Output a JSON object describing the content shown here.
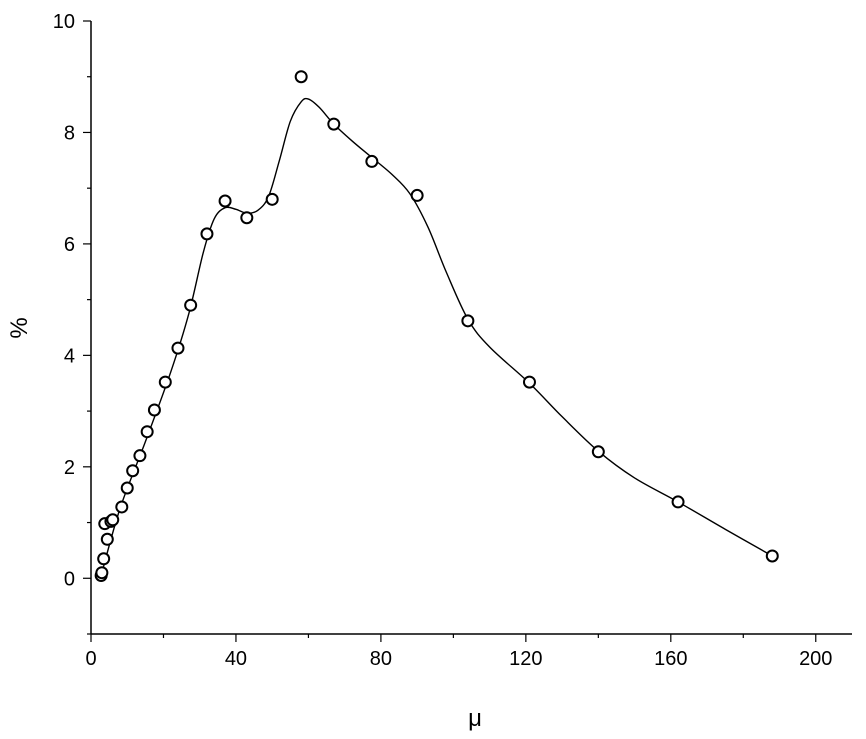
{
  "chart_data": {
    "type": "scatter",
    "title": "",
    "xlabel": "μ",
    "ylabel": "%",
    "xlim": [
      0,
      210
    ],
    "ylim": [
      -1,
      10
    ],
    "x_ticks": [
      0,
      40,
      80,
      120,
      160,
      200
    ],
    "y_ticks": [
      0,
      2,
      4,
      6,
      8,
      10
    ],
    "grid": false,
    "legend": "none",
    "marker": "open-circle",
    "series": [
      {
        "points": [
          [
            2.8,
            0.05
          ],
          [
            3.0,
            0.1
          ],
          [
            3.5,
            0.35
          ],
          [
            3.8,
            0.98
          ],
          [
            4.5,
            0.7
          ],
          [
            5.5,
            1.02
          ],
          [
            6.0,
            1.05
          ],
          [
            8.5,
            1.28
          ],
          [
            10.0,
            1.62
          ],
          [
            11.5,
            1.93
          ],
          [
            13.5,
            2.2
          ],
          [
            15.5,
            2.63
          ],
          [
            17.5,
            3.02
          ],
          [
            20.5,
            3.52
          ],
          [
            24.0,
            4.13
          ],
          [
            27.5,
            4.9
          ],
          [
            32.0,
            6.18
          ],
          [
            37.0,
            6.77
          ],
          [
            43.0,
            6.47
          ],
          [
            50.0,
            6.8
          ],
          [
            58.0,
            9.0
          ],
          [
            67.0,
            8.15
          ],
          [
            77.5,
            7.48
          ],
          [
            90.0,
            6.87
          ],
          [
            104.0,
            4.62
          ],
          [
            121.0,
            3.52
          ],
          [
            140.0,
            2.27
          ],
          [
            162.0,
            1.37
          ],
          [
            188.0,
            0.4
          ]
        ]
      }
    ],
    "fit_curve": [
      [
        2.8,
        0.05
      ],
      [
        8,
        1.25
      ],
      [
        15,
        2.45
      ],
      [
        22,
        3.7
      ],
      [
        27,
        4.75
      ],
      [
        31,
        5.85
      ],
      [
        34,
        6.45
      ],
      [
        37,
        6.65
      ],
      [
        40,
        6.62
      ],
      [
        43,
        6.55
      ],
      [
        46,
        6.6
      ],
      [
        49,
        6.85
      ],
      [
        52,
        7.5
      ],
      [
        55,
        8.2
      ],
      [
        58,
        8.55
      ],
      [
        60,
        8.6
      ],
      [
        63,
        8.45
      ],
      [
        67,
        8.15
      ],
      [
        72,
        7.85
      ],
      [
        77.5,
        7.55
      ],
      [
        83,
        7.25
      ],
      [
        88,
        6.9
      ],
      [
        93,
        6.3
      ],
      [
        98,
        5.5
      ],
      [
        104,
        4.65
      ],
      [
        110,
        4.15
      ],
      [
        121,
        3.5
      ],
      [
        130,
        2.9
      ],
      [
        140,
        2.28
      ],
      [
        150,
        1.8
      ],
      [
        162,
        1.37
      ],
      [
        175,
        0.88
      ],
      [
        188,
        0.4
      ]
    ]
  }
}
